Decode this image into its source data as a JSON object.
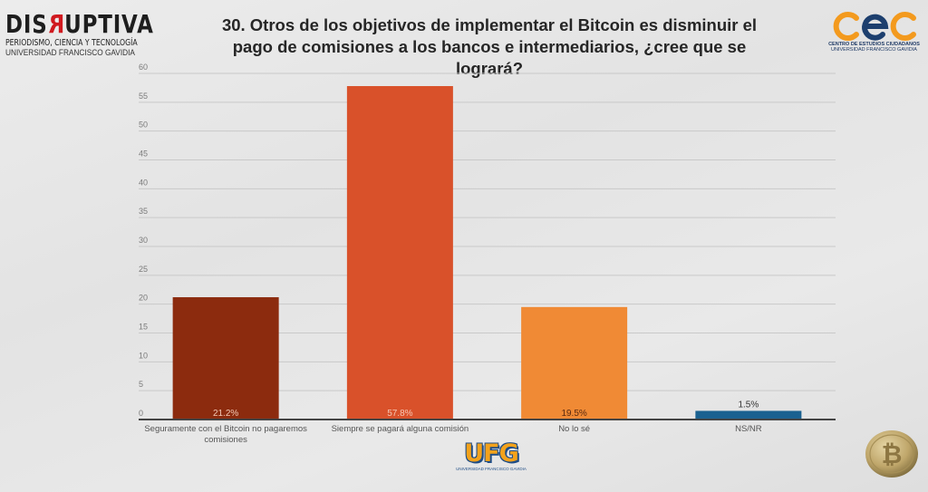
{
  "logos": {
    "disruptiva": {
      "name_pre": "DIS",
      "name_r": "R",
      "name_post": "UPTIVA",
      "tagline": "PERIODISMO, CIENCIA Y TECNOLOGÍA",
      "institution": "UNIVERSIDAD FRANCISCO GAVIDIA"
    },
    "cec": {
      "line1": "CENTRO DE ESTUDIOS CIUDADANOS",
      "line2": "UNIVERSIDAD FRANCISCO GAVIDIA",
      "colors": {
        "orange": "#f39a1e",
        "blue": "#1d3f6e"
      }
    },
    "ufg": {
      "mark": "UFG",
      "sub": "UNIVERSIDAD FRANCISCO GAVIDIA"
    },
    "coin_icon": "bitcoin-coin-icon"
  },
  "chart_data": {
    "type": "bar",
    "title": "30. Otros de los objetivos de implementar el Bitcoin es disminuir el pago de comisiones a los bancos e intermediarios, ¿cree que se logrará?",
    "xlabel": "",
    "ylabel": "",
    "ylim": [
      0,
      60
    ],
    "yticks": [
      0,
      5,
      10,
      15,
      20,
      25,
      30,
      35,
      40,
      45,
      50,
      55,
      60
    ],
    "grid": true,
    "categories": [
      [
        "Seguramente con el Bitcoin no pagaremos",
        "comisiones"
      ],
      [
        "Siempre se pagará alguna comisión"
      ],
      [
        "No lo sé"
      ],
      [
        "NS/NR"
      ]
    ],
    "values": [
      21.2,
      57.8,
      19.5,
      1.5
    ],
    "data_labels": [
      "21.2%",
      "57.8%",
      "19.5%",
      "1.5%"
    ],
    "colors": [
      "#8c2b0e",
      "#d9512a",
      "#f08a35",
      "#1a6190"
    ],
    "label_colors": [
      "#f3c9b5",
      "#f6c7b3",
      "#5a2a10",
      "#333333"
    ],
    "label_position": [
      "inside-bottom",
      "inside-bottom",
      "inside-bottom",
      "above"
    ]
  }
}
